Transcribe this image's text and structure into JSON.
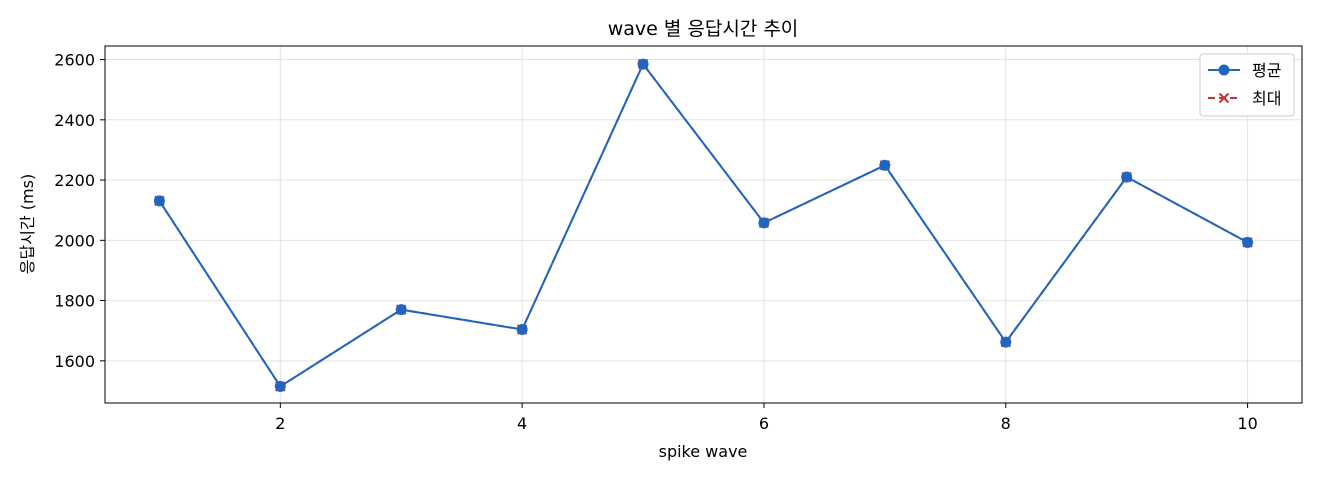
{
  "chart_data": {
    "type": "line",
    "title": "wave 별 응답시간 추이",
    "xlabel": "spike wave",
    "ylabel": "응답시간 (ms)",
    "x": [
      1,
      2,
      3,
      4,
      5,
      6,
      7,
      8,
      9,
      10
    ],
    "xlim": [
      0.55,
      10.45
    ],
    "ylim": [
      1460,
      2645
    ],
    "xticks": [
      2,
      4,
      6,
      8,
      10
    ],
    "yticks": [
      1600,
      1800,
      2000,
      2200,
      2400,
      2600
    ],
    "grid": true,
    "legend": "top-right",
    "series": [
      {
        "name": "평균",
        "values": [
          2131,
          1515,
          1770,
          1704,
          2585,
          2058,
          2249,
          1662,
          2210,
          1993
        ],
        "color": "#1f66c0",
        "line_style": "solid",
        "marker": "circle"
      },
      {
        "name": "최대",
        "values": [
          2131,
          1515,
          1770,
          1704,
          2585,
          2058,
          2249,
          1662,
          2210,
          1993
        ],
        "color": "#c8323c",
        "line_style": "dashed",
        "marker": "x"
      }
    ]
  }
}
